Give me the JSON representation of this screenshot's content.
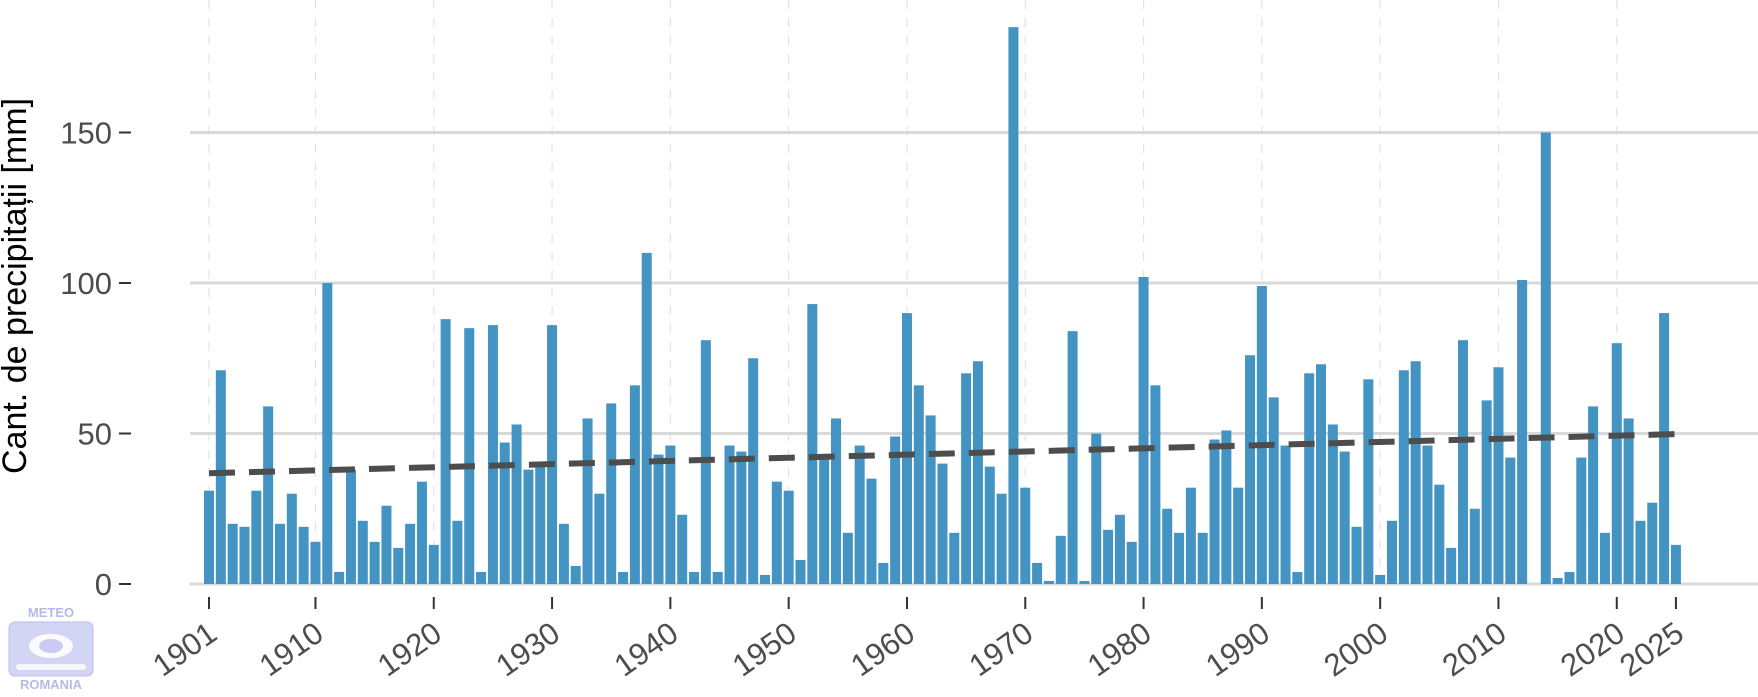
{
  "chart_data": {
    "type": "bar",
    "title": "",
    "xlabel": "",
    "ylabel": "Cant. de precipitații [mm]",
    "x_start": 1901,
    "x_end": 2025,
    "x_ticks": [
      1901,
      1910,
      1920,
      1930,
      1940,
      1950,
      1960,
      1970,
      1980,
      1990,
      2000,
      2010,
      2020,
      2025
    ],
    "y_ticks": [
      0,
      50,
      100,
      150
    ],
    "ylim": [
      0,
      186
    ],
    "grid": true,
    "bar_color": "#4393c3",
    "values": [
      31,
      71,
      20,
      19,
      31,
      59,
      20,
      30,
      19,
      14,
      100,
      4,
      38,
      21,
      14,
      26,
      12,
      20,
      34,
      13,
      88,
      21,
      85,
      4,
      86,
      47,
      53,
      38,
      40,
      86,
      20,
      6,
      55,
      30,
      60,
      4,
      66,
      110,
      43,
      46,
      23,
      4,
      81,
      4,
      46,
      44,
      75,
      3,
      34,
      31,
      8,
      93,
      42,
      55,
      17,
      46,
      35,
      7,
      49,
      90,
      66,
      56,
      40,
      17,
      70,
      74,
      39,
      30,
      185,
      32,
      7,
      1,
      16,
      84,
      1,
      50,
      18,
      23,
      14,
      102,
      66,
      25,
      17,
      32,
      17,
      48,
      51,
      32,
      76,
      99,
      62,
      46,
      4,
      70,
      73,
      53,
      44,
      19,
      68,
      3,
      21,
      71,
      74,
      46,
      33,
      12,
      81,
      25,
      61,
      72,
      42,
      101,
      0,
      150,
      2,
      4,
      42,
      59,
      17,
      80,
      55,
      21,
      27,
      90,
      13
    ],
    "trend": {
      "style": "dashed",
      "color": "#4d4d4d",
      "start_value": 36.8,
      "end_value": 49.8
    }
  },
  "logo": {
    "text_top": "METEO",
    "text_bottom": "ROMANIA"
  }
}
